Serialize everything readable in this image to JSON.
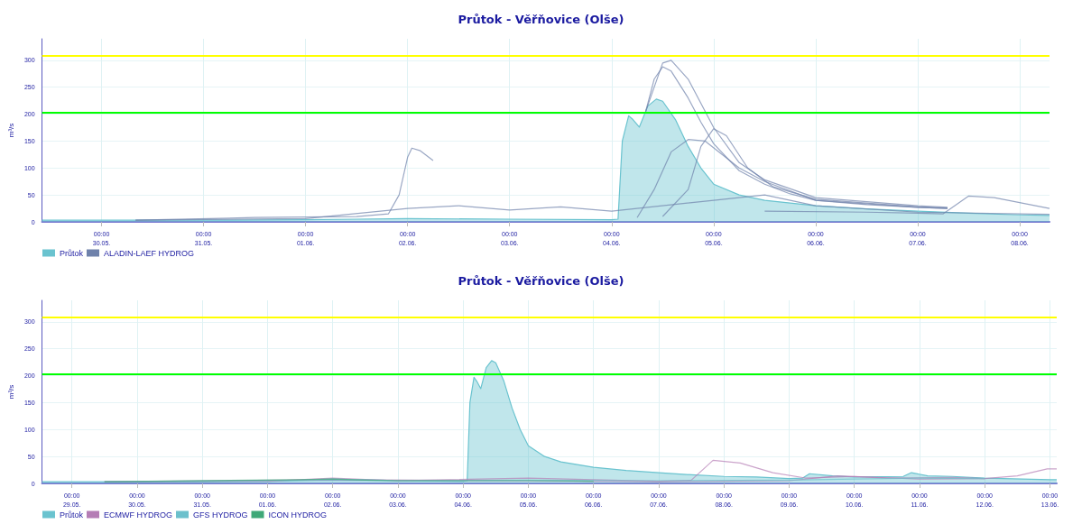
{
  "chart_data": [
    {
      "type": "line",
      "title": "Průtok - Věřňovice (Olše)",
      "ylabel": "m³/s",
      "xlim": [
        "--05-29T10:00",
        "--06-08T07:00"
      ],
      "xticks": [
        {
          "value": "--05-30T00:00",
          "label": "00:00\n30.05."
        },
        {
          "value": "--05-31T00:00",
          "label": "00:00\n31.05."
        },
        {
          "value": "--06-01T00:00",
          "label": "00:00\n01.06."
        },
        {
          "value": "--06-02T00:00",
          "label": "00:00\n02.06."
        },
        {
          "value": "--06-03T00:00",
          "label": "00:00\n03.06."
        },
        {
          "value": "--06-04T00:00",
          "label": "00:00\n04.06."
        },
        {
          "value": "--06-05T00:00",
          "label": "00:00\n05.06."
        },
        {
          "value": "--06-06T00:00",
          "label": "00:00\n06.06."
        },
        {
          "value": "--06-07T00:00",
          "label": "00:00\n07.06."
        },
        {
          "value": "--06-08T00:00",
          "label": "00:00\n08.06."
        }
      ],
      "ylim": [
        0,
        340
      ],
      "yticks": [
        0,
        50,
        100,
        150,
        200,
        250,
        300
      ],
      "grid": true,
      "legend": "bottom left",
      "marker": "none",
      "ref_lines": [
        {
          "axis": "y",
          "value": 309,
          "color": "#ffff00"
        },
        {
          "axis": "y",
          "value": 203,
          "color": "#00ff00"
        }
      ],
      "series": [
        {
          "name": "Průtok",
          "type": "area",
          "color": "#6ac3cf",
          "x": [
            "--05-29T10:00",
            "--05-30T00:00",
            "--05-31T00:00",
            "--06-01T00:00",
            "--06-01T12:00",
            "--06-02T00:00",
            "--06-03T00:00",
            "--06-04T00:00",
            "--06-04T01:30",
            "--06-04T02:30",
            "--06-04T04:00",
            "--06-04T05:00",
            "--06-04T06:30",
            "--06-04T08:30",
            "--06-04T10:30",
            "--06-04T12:00",
            "--06-04T15:00",
            "--06-04T18:00",
            "--06-04T21:00",
            "--06-05T00:00",
            "--06-05T06:00",
            "--06-05T12:00",
            "--06-06T00:00",
            "--06-06T12:00",
            "--06-07T00:00",
            "--06-07T12:00",
            "--06-08T00:00",
            "--06-08T07:00"
          ],
          "values": [
            3,
            3,
            3,
            4,
            5,
            6,
            5,
            4,
            5,
            150,
            197,
            190,
            176,
            215,
            228,
            224,
            190,
            140,
            100,
            70,
            50,
            40,
            30,
            24,
            20,
            16,
            13,
            12
          ]
        },
        {
          "name": "ALADIN-LAEF HYDROG",
          "color": "#6f82ab",
          "x": [
            "--05-30T08:00",
            "--05-31T12:00",
            "--06-01T12:00",
            "--06-01T19:30",
            "--06-01T22:00",
            "--06-02T00:00",
            "--06-02T01:00",
            "--06-02T03:00",
            "--06-02T06:00"
          ],
          "values": [
            3,
            8,
            10,
            15,
            50,
            120,
            137,
            132,
            114
          ]
        },
        {
          "color": "#6f82ab",
          "x": [
            "--06-04T08:00",
            "--06-04T10:00",
            "--06-04T12:00",
            "--06-04T14:00",
            "--06-04T18:00",
            "--06-04T21:00",
            "--06-05T00:00",
            "--06-05T06:00",
            "--06-05T12:00",
            "--06-05T18:00",
            "--06-06T00:00",
            "--06-06T12:00",
            "--06-07T00:00",
            "--06-07T07:00"
          ],
          "values": [
            205,
            265,
            288,
            280,
            230,
            185,
            145,
            95,
            70,
            52,
            40,
            32,
            27,
            25
          ]
        },
        {
          "color": "#6f82ab",
          "x": [
            "--06-04T08:00",
            "--06-04T12:00",
            "--06-04T14:00",
            "--06-04T18:00",
            "--06-05T00:00",
            "--06-05T06:00",
            "--06-05T12:00",
            "--06-06T00:00",
            "--06-07T00:00",
            "--06-07T07:00"
          ],
          "values": [
            205,
            295,
            300,
            265,
            175,
            110,
            78,
            45,
            30,
            27
          ]
        },
        {
          "color": "#6f82ab",
          "x": [
            "--06-04T12:00",
            "--06-04T18:00",
            "--06-04T21:00",
            "--06-05T00:00",
            "--06-05T03:00",
            "--06-05T08:00",
            "--06-05T14:00",
            "--06-06T00:00",
            "--06-07T00:00",
            "--06-07T07:00"
          ],
          "values": [
            10,
            60,
            140,
            173,
            160,
            100,
            65,
            42,
            28,
            26
          ]
        },
        {
          "color": "#6f82ab",
          "x": [
            "--06-04T06:00",
            "--06-04T10:00",
            "--06-04T14:00",
            "--06-04T18:00",
            "--06-04T22:00",
            "--06-05T06:00",
            "--06-05T12:00",
            "--06-06T00:00",
            "--06-07T00:00",
            "--06-07T07:00"
          ],
          "values": [
            8,
            60,
            130,
            153,
            150,
            100,
            75,
            40,
            27,
            25
          ]
        },
        {
          "color": "#6f82ab",
          "x": [
            "--06-05T12:00",
            "--06-06T12:00",
            "--06-07T06:00",
            "--06-07T12:00",
            "--06-07T18:00",
            "--06-08T07:00"
          ],
          "values": [
            20,
            18,
            15,
            48,
            45,
            25
          ]
        },
        {
          "color": "#6f82ab",
          "x": [
            "--05-30T08:00",
            "--06-01T00:00",
            "--06-02T00:00",
            "--06-02T12:00",
            "--06-03T00:00",
            "--06-03T12:00",
            "--06-04T00:00",
            "--06-05T00:00",
            "--06-05T12:00",
            "--06-06T00:00",
            "--06-07T00:00",
            "--06-08T07:00"
          ],
          "values": [
            3,
            6,
            25,
            30,
            22,
            28,
            20,
            40,
            50,
            30,
            18,
            14
          ]
        }
      ]
    },
    {
      "type": "line",
      "title": "Průtok - Věřňovice (Olše)",
      "ylabel": "m³/s",
      "xlim": [
        "--05-28T13:00",
        "--06-13T02:30"
      ],
      "xticks": [
        {
          "value": "--05-29T00:00",
          "label": "00:00\n29.05."
        },
        {
          "value": "--05-30T00:00",
          "label": "00:00\n30.05."
        },
        {
          "value": "--05-31T00:00",
          "label": "00:00\n31.05."
        },
        {
          "value": "--06-01T00:00",
          "label": "00:00\n01.06."
        },
        {
          "value": "--06-02T00:00",
          "label": "00:00\n02.06."
        },
        {
          "value": "--06-03T00:00",
          "label": "00:00\n03.06."
        },
        {
          "value": "--06-04T00:00",
          "label": "00:00\n04.06."
        },
        {
          "value": "--06-05T00:00",
          "label": "00:00\n05.06."
        },
        {
          "value": "--06-06T00:00",
          "label": "00:00\n06.06."
        },
        {
          "value": "--06-07T00:00",
          "label": "00:00\n07.06."
        },
        {
          "value": "--06-08T00:00",
          "label": "00:00\n08.06."
        },
        {
          "value": "--06-09T00:00",
          "label": "00:00\n09.06."
        },
        {
          "value": "--06-10T00:00",
          "label": "00:00\n10.06."
        },
        {
          "value": "--06-11T00:00",
          "label": "00:00\n11.06."
        },
        {
          "value": "--06-12T00:00",
          "label": "00:00\n12.06."
        },
        {
          "value": "--06-13T00:00",
          "label": "00:00\n13.06."
        }
      ],
      "ylim": [
        0,
        340
      ],
      "yticks": [
        0,
        50,
        100,
        150,
        200,
        250,
        300
      ],
      "grid": true,
      "legend": "bottom left",
      "marker": "none",
      "ref_lines": [
        {
          "axis": "y",
          "value": 309,
          "color": "#ffff00"
        },
        {
          "axis": "y",
          "value": 203,
          "color": "#00ff00"
        }
      ],
      "series": [
        {
          "name": "Průtok",
          "type": "area",
          "color": "#6ac3cf",
          "x": [
            "--05-28T13:00",
            "--05-30T00:00",
            "--05-31T00:00",
            "--06-01T00:00",
            "--06-01T12:00",
            "--06-02T00:00",
            "--06-03T00:00",
            "--06-04T00:00",
            "--06-04T01:30",
            "--06-04T02:30",
            "--06-04T04:00",
            "--06-04T05:00",
            "--06-04T06:30",
            "--06-04T08:30",
            "--06-04T10:30",
            "--06-04T12:00",
            "--06-04T15:00",
            "--06-04T18:00",
            "--06-04T21:00",
            "--06-05T00:00",
            "--06-05T06:00",
            "--06-05T12:00",
            "--06-06T00:00",
            "--06-06T12:00",
            "--06-07T00:00",
            "--06-07T12:00",
            "--06-08T00:00",
            "--06-08T12:00",
            "--06-09T00:00",
            "--06-09T05:00",
            "--06-09T07:30",
            "--06-09T16:00",
            "--06-10T00:00",
            "--06-10T18:00",
            "--06-10T21:00",
            "--06-11T03:00",
            "--06-11T12:00",
            "--06-12T00:00",
            "--06-13T00:00",
            "--06-13T02:30"
          ],
          "values": [
            3,
            3,
            3,
            4,
            5,
            6,
            5,
            4,
            5,
            150,
            197,
            190,
            176,
            215,
            228,
            224,
            190,
            140,
            100,
            70,
            50,
            40,
            30,
            24,
            20,
            16,
            13,
            12,
            9,
            10,
            18,
            14,
            12,
            13,
            20,
            14,
            13,
            10,
            7,
            7
          ]
        },
        {
          "name": "ECMWF HYDROG",
          "color": "#b57db5",
          "x": [
            "--05-29T12:00",
            "--06-01T00:00",
            "--06-02T00:00",
            "--06-03T00:00",
            "--06-05T00:00",
            "--06-06T00:00",
            "--06-07T00:00",
            "--06-07T12:00",
            "--06-07T20:00",
            "--06-08T06:00",
            "--06-08T18:00",
            "--06-09T06:00",
            "--06-10T00:00",
            "--06-11T00:00",
            "--06-12T00:00",
            "--06-12T12:00",
            "--06-12T23:00",
            "--06-13T02:30"
          ],
          "values": [
            3,
            4,
            10,
            5,
            10,
            7,
            4,
            6,
            43,
            38,
            20,
            10,
            13,
            8,
            9,
            14,
            27,
            27
          ]
        },
        {
          "color": "#b57db5",
          "x": [
            "--05-29T12:00",
            "--06-02T00:00",
            "--06-05T00:00",
            "--06-07T00:00",
            "--06-09T00:00",
            "--06-09T18:00",
            "--06-10T12:00",
            "--06-11T12:00",
            "--06-12T00:00"
          ],
          "values": [
            3,
            7,
            5,
            3,
            5,
            14,
            10,
            11,
            9
          ]
        },
        {
          "name": "GFS HYDROG",
          "color": "#6cc0cc",
          "x": [
            "--05-29T12:00",
            "--06-01T12:00",
            "--06-02T00:00",
            "--06-02T18:00",
            "--06-03T00:00",
            "--06-05T00:00",
            "--06-07T00:00",
            "--06-09T00:00",
            "--06-10T00:00",
            "--06-11T00:00",
            "--06-12T00:00"
          ],
          "values": [
            3,
            6,
            8,
            6,
            5,
            6,
            5,
            6,
            8,
            10,
            9
          ]
        },
        {
          "name": "ICON HYDROG",
          "color": "#3fa878",
          "x": [
            "--05-29T12:00",
            "--06-01T12:00",
            "--06-02T00:00",
            "--06-02T12:00",
            "--06-03T00:00",
            "--06-05T00:00",
            "--06-06T00:00"
          ],
          "values": [
            3,
            7,
            8,
            6,
            5,
            5,
            4
          ]
        }
      ]
    }
  ]
}
